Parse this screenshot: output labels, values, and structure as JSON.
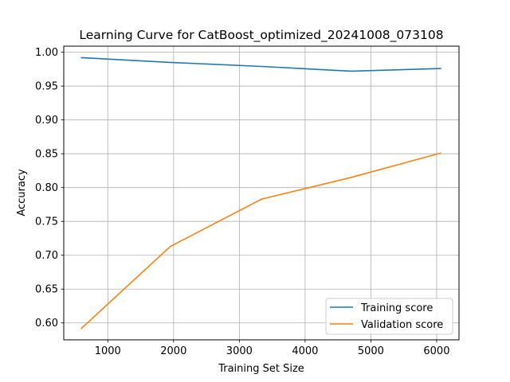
{
  "chart_data": {
    "type": "line",
    "title": "Learning Curve for CatBoost_optimized_20241008_073108",
    "xlabel": "Training Set Size",
    "ylabel": "Accuracy",
    "xlim": [
      330,
      6340
    ],
    "ylim": [
      0.575,
      1.009
    ],
    "xticks": [
      1000,
      2000,
      3000,
      4000,
      5000,
      6000
    ],
    "yticks": [
      0.6,
      0.65,
      0.7,
      0.75,
      0.8,
      0.85,
      0.9,
      0.95,
      1.0
    ],
    "xtick_labels": [
      "1000",
      "2000",
      "3000",
      "4000",
      "5000",
      "6000"
    ],
    "ytick_labels": [
      "0.60",
      "0.65",
      "0.70",
      "0.75",
      "0.80",
      "0.85",
      "0.90",
      "0.95",
      "1.00"
    ],
    "grid": true,
    "legend_position": "lower-right",
    "series": [
      {
        "name": "Training score",
        "color": "#1f77b4",
        "x": [
          600,
          1950,
          3340,
          4700,
          6060
        ],
        "y": [
          0.992,
          0.985,
          0.979,
          0.972,
          0.976
        ]
      },
      {
        "name": "Validation score",
        "color": "#ff7f0e",
        "x": [
          600,
          1950,
          3340,
          4700,
          6060
        ],
        "y": [
          0.592,
          0.713,
          0.783,
          0.815,
          0.851
        ]
      }
    ]
  }
}
